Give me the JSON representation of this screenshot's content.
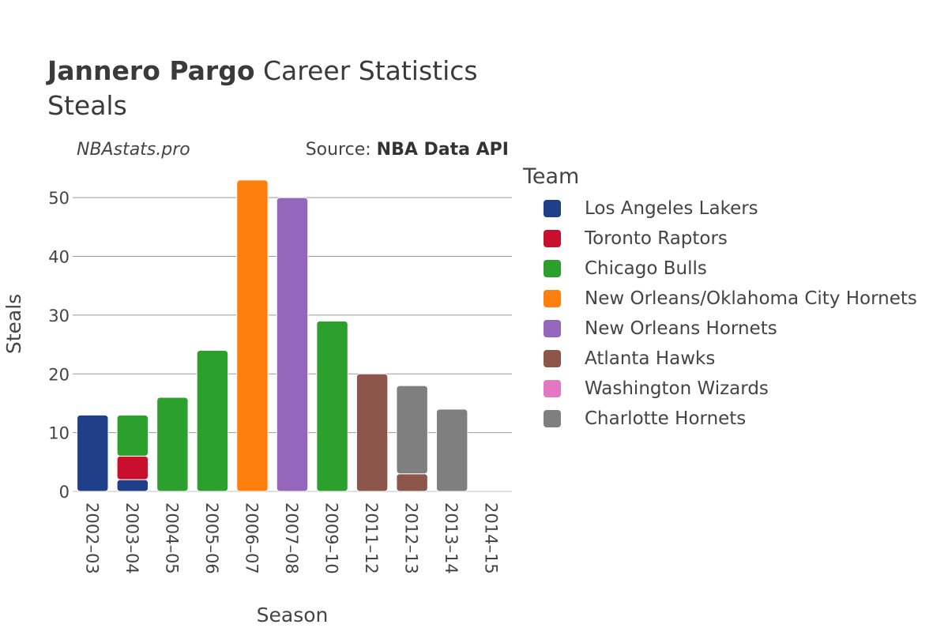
{
  "header": {
    "title_bold": "Jannero Pargo",
    "title_rest": " Career Statistics",
    "subtitle": "Steals",
    "watermark": "NBAstats.pro",
    "source_prefix": "Source: ",
    "source_name": "NBA Data API"
  },
  "legend": {
    "title": "Team"
  },
  "chart_data": {
    "type": "bar",
    "stacked": true,
    "title": "Jannero Pargo Career Statistics Steals",
    "xlabel": "Season",
    "ylabel": "Steals",
    "ylim": [
      0,
      55
    ],
    "yticks": [
      0,
      10,
      20,
      30,
      40,
      50
    ],
    "grid": true,
    "legend_position": "right",
    "categories": [
      "2002–03",
      "2003–04",
      "2004–05",
      "2005–06",
      "2006–07",
      "2007–08",
      "2009–10",
      "2011–12",
      "2012–13",
      "2013–14",
      "2014–15"
    ],
    "series": [
      {
        "name": "Los Angeles Lakers",
        "color": "#1f3f8a",
        "values": [
          13,
          2,
          0,
          0,
          0,
          0,
          0,
          0,
          0,
          0,
          0
        ]
      },
      {
        "name": "Toronto Raptors",
        "color": "#c8102e",
        "values": [
          0,
          4,
          0,
          0,
          0,
          0,
          0,
          0,
          0,
          0,
          0
        ]
      },
      {
        "name": "Chicago Bulls",
        "color": "#2ca02c",
        "values": [
          0,
          7,
          16,
          24,
          0,
          0,
          29,
          0,
          0,
          0,
          0
        ]
      },
      {
        "name": "New Orleans/Oklahoma City Hornets",
        "color": "#ff7f0e",
        "values": [
          0,
          0,
          0,
          0,
          53,
          0,
          0,
          0,
          0,
          0,
          0
        ]
      },
      {
        "name": "New Orleans Hornets",
        "color": "#9467bd",
        "values": [
          0,
          0,
          0,
          0,
          0,
          50,
          0,
          0,
          0,
          0,
          0
        ]
      },
      {
        "name": "Atlanta Hawks",
        "color": "#8c564b",
        "values": [
          0,
          0,
          0,
          0,
          0,
          0,
          0,
          20,
          3,
          0,
          0
        ]
      },
      {
        "name": "Washington Wizards",
        "color": "#e377c2",
        "values": [
          0,
          0,
          0,
          0,
          0,
          0,
          0,
          0,
          0,
          0,
          0
        ]
      },
      {
        "name": "Charlotte Hornets",
        "color": "#7f7f7f",
        "values": [
          0,
          0,
          0,
          0,
          0,
          0,
          0,
          0,
          15,
          14,
          0
        ]
      }
    ]
  }
}
